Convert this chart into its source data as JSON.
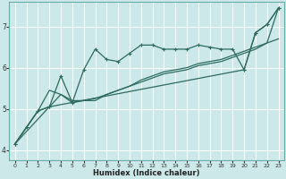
{
  "xlabel": "Humidex (Indice chaleur)",
  "bg_color": "#cce8e8",
  "grid_color": "#ffffff",
  "line_color": "#2d6b5e",
  "xlim": [
    -0.5,
    23.5
  ],
  "ylim": [
    3.75,
    7.6
  ],
  "xticks": [
    0,
    1,
    2,
    3,
    4,
    5,
    6,
    7,
    8,
    9,
    10,
    11,
    12,
    13,
    14,
    15,
    16,
    17,
    18,
    19,
    20,
    21,
    22,
    23
  ],
  "yticks": [
    4,
    5,
    6,
    7
  ],
  "line1_x": [
    0,
    1,
    2,
    3,
    4,
    5,
    6,
    7,
    8,
    9,
    10,
    11,
    12,
    13,
    14,
    15,
    16,
    17,
    18,
    19,
    20,
    21,
    22,
    23
  ],
  "line1_y": [
    4.15,
    4.55,
    4.95,
    5.05,
    5.8,
    5.15,
    5.95,
    6.45,
    6.2,
    6.15,
    6.35,
    6.55,
    6.55,
    6.45,
    6.45,
    6.45,
    6.55,
    6.5,
    6.45,
    6.45,
    5.95,
    6.85,
    7.05,
    7.45
  ],
  "line2_x": [
    0,
    1,
    2,
    3,
    4,
    5,
    6,
    7,
    8,
    9,
    10,
    11,
    12,
    13,
    14,
    15,
    16,
    17,
    18,
    19,
    20,
    21,
    22,
    23
  ],
  "line2_y": [
    4.15,
    4.55,
    4.95,
    5.45,
    5.35,
    5.2,
    5.2,
    5.2,
    5.35,
    5.45,
    5.55,
    5.7,
    5.8,
    5.9,
    5.95,
    6.0,
    6.1,
    6.15,
    6.2,
    6.3,
    6.4,
    6.5,
    6.6,
    6.7
  ],
  "line3_x": [
    0,
    1,
    2,
    3,
    4,
    5,
    6,
    7,
    8,
    9,
    10,
    11,
    12,
    13,
    14,
    15,
    16,
    17,
    18,
    19,
    20,
    21,
    22,
    23
  ],
  "line3_y": [
    4.15,
    4.55,
    4.95,
    5.05,
    5.35,
    5.15,
    5.2,
    5.25,
    5.35,
    5.45,
    5.55,
    5.65,
    5.75,
    5.85,
    5.9,
    5.95,
    6.05,
    6.1,
    6.15,
    6.25,
    6.35,
    6.45,
    6.6,
    7.45
  ],
  "line4_x": [
    0,
    3,
    20,
    21,
    22,
    23
  ],
  "line4_y": [
    4.15,
    5.05,
    5.95,
    6.85,
    7.05,
    7.45
  ]
}
